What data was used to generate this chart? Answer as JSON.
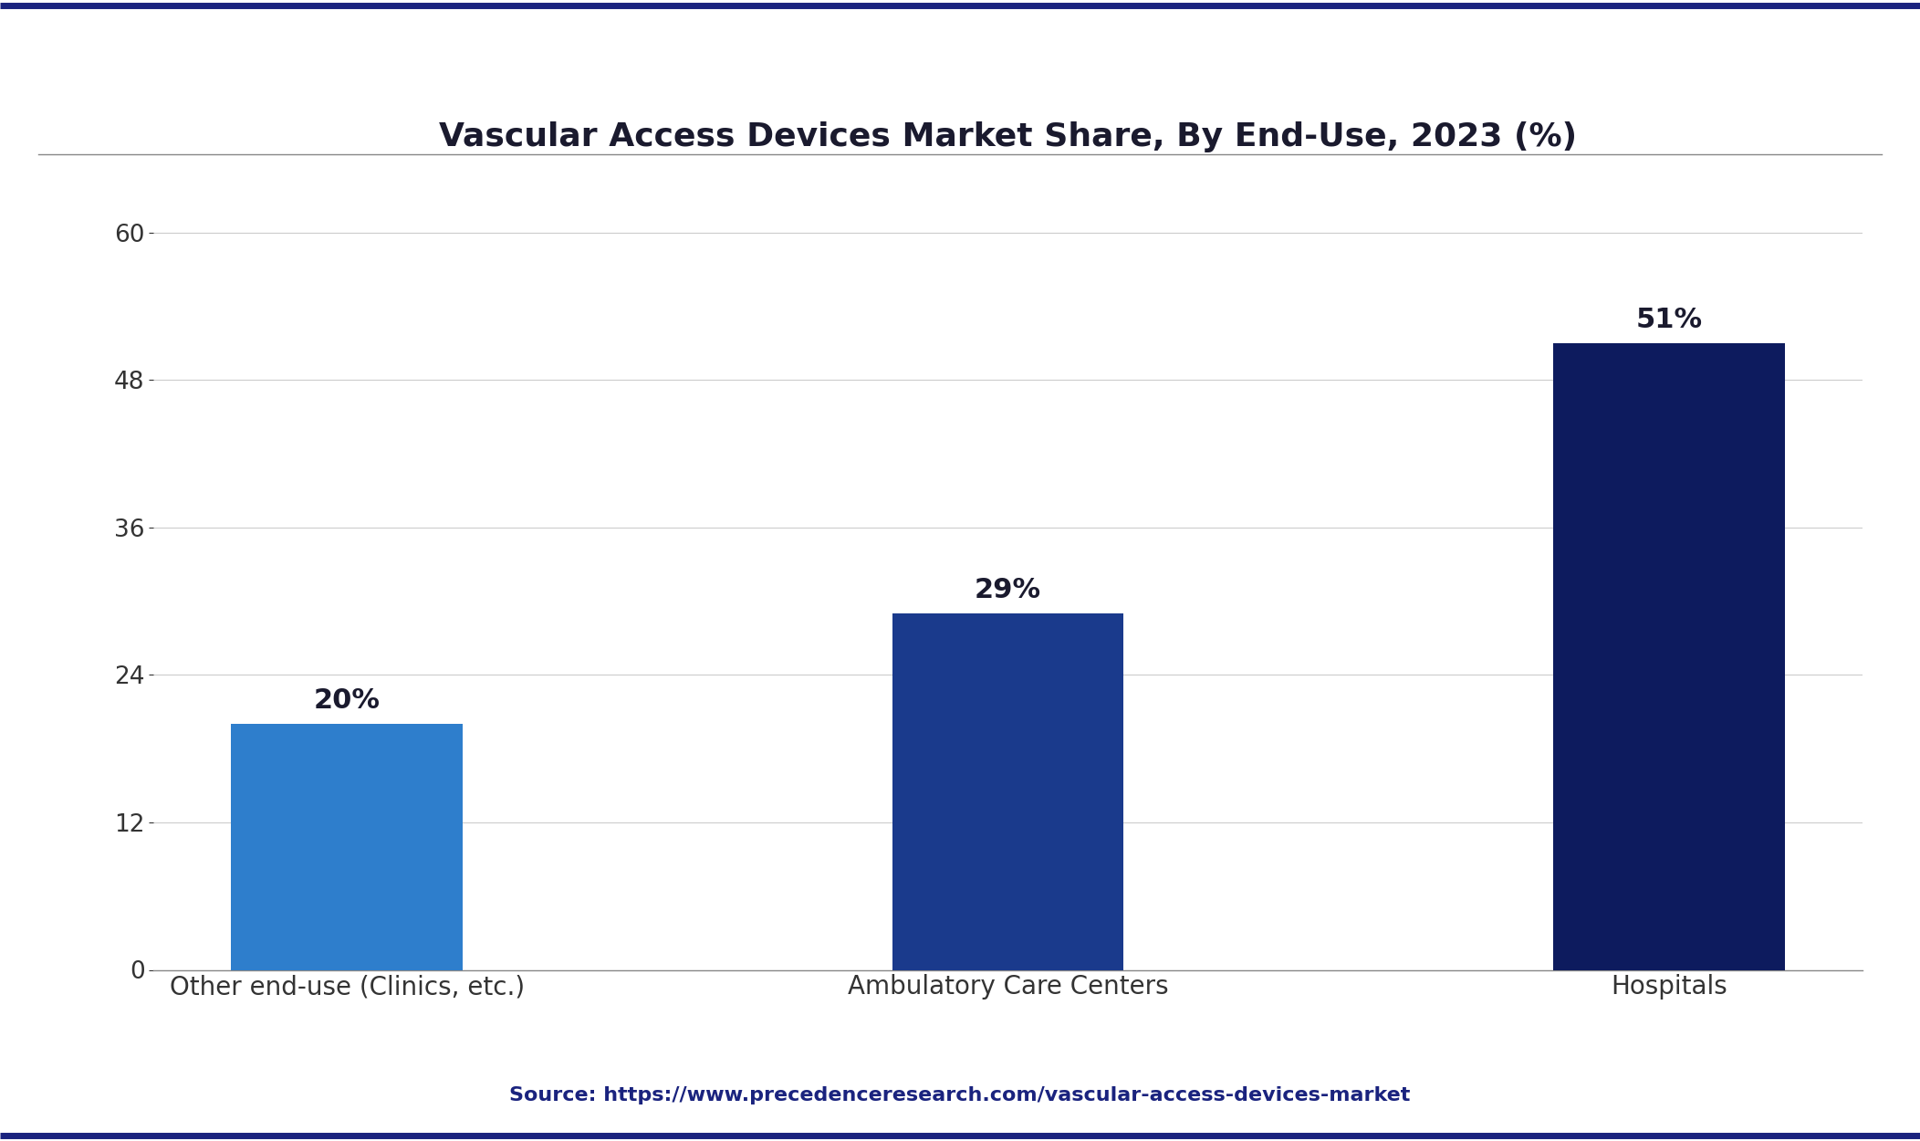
{
  "title": "Vascular Access Devices Market Share, By End-Use, 2023 (%)",
  "categories": [
    "Other end-use (Clinics, etc.)",
    "Ambulatory Care Centers",
    "Hospitals"
  ],
  "values": [
    20,
    29,
    51
  ],
  "bar_colors": [
    "#2E7ECC",
    "#1A3A8C",
    "#0D1B5E"
  ],
  "value_labels": [
    "20%",
    "29%",
    "51%"
  ],
  "yticks": [
    0,
    12,
    24,
    36,
    48,
    60
  ],
  "ylim": [
    0,
    65
  ],
  "source_text": "Source: https://www.precedenceresearch.com/vascular-access-devices-market",
  "background_color": "#FFFFFF",
  "plot_bg_color": "#FFFFFF",
  "title_fontsize": 26,
  "label_fontsize": 20,
  "tick_fontsize": 19,
  "source_fontsize": 16,
  "bar_label_fontsize": 22,
  "title_color": "#1a1a2e",
  "axis_color": "#888888",
  "grid_color": "#cccccc",
  "source_color": "#1A237E",
  "top_border_color": "#1A237E",
  "bottom_border_color": "#1A237E"
}
